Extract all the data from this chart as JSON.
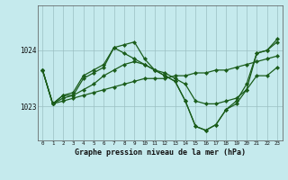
{
  "title": "Graphe pression niveau de la mer (hPa)",
  "bg_color": "#c5eaed",
  "grid_color": "#9bbfc2",
  "line_color": "#1a5c1a",
  "marker_color": "#1a5c1a",
  "xlim": [
    -0.5,
    23.5
  ],
  "ylim": [
    1022.4,
    1024.8
  ],
  "yticks": [
    1023,
    1024
  ],
  "xticks": [
    0,
    1,
    2,
    3,
    4,
    5,
    6,
    7,
    8,
    9,
    10,
    11,
    12,
    13,
    14,
    15,
    16,
    17,
    18,
    19,
    20,
    21,
    22,
    23
  ],
  "series": [
    [
      1023.65,
      1023.05,
      1023.1,
      1023.15,
      1023.2,
      1023.25,
      1023.3,
      1023.35,
      1023.4,
      1023.45,
      1023.5,
      1023.5,
      1023.5,
      1023.55,
      1023.55,
      1023.6,
      1023.6,
      1023.65,
      1023.65,
      1023.7,
      1023.75,
      1023.8,
      1023.85,
      1023.9
    ],
    [
      1023.65,
      1023.05,
      1023.15,
      1023.2,
      1023.3,
      1023.4,
      1023.55,
      1023.65,
      1023.75,
      1023.8,
      1023.75,
      1023.65,
      1023.6,
      1023.5,
      1023.4,
      1023.1,
      1023.05,
      1023.05,
      1023.1,
      1023.15,
      1023.3,
      1023.55,
      1023.55,
      1023.7
    ],
    [
      1023.65,
      1023.05,
      1023.2,
      1023.2,
      1023.5,
      1023.6,
      1023.7,
      1024.05,
      1023.95,
      1023.85,
      1023.75,
      1023.65,
      1023.55,
      1023.45,
      1023.1,
      1022.65,
      1022.58,
      1022.68,
      1022.95,
      1023.05,
      1023.3,
      1023.95,
      1024.0,
      1024.15
    ],
    [
      1023.65,
      1023.05,
      1023.2,
      1023.25,
      1023.55,
      1023.65,
      1023.75,
      1024.05,
      1024.1,
      1024.15,
      1023.85,
      1023.65,
      1023.55,
      1023.45,
      1023.1,
      1022.65,
      1022.58,
      1022.68,
      1022.95,
      1023.1,
      1023.4,
      1023.95,
      1024.0,
      1024.2
    ]
  ]
}
